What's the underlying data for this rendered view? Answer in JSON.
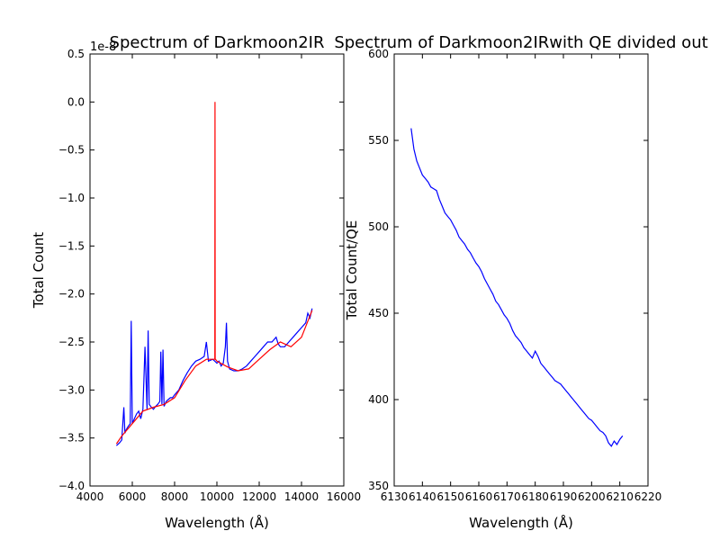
{
  "chart_data": [
    {
      "type": "line",
      "title": "Spectrum of Darkmoon2IR",
      "xlabel": "Wavelength (Å)",
      "ylabel": "Total Count",
      "offset_text": "1e-8",
      "xlim": [
        4000,
        16000
      ],
      "ylim": [
        -4.0,
        0.5
      ],
      "xticks": [
        "4000",
        "6000",
        "8000",
        "10000",
        "12000",
        "14000",
        "16000"
      ],
      "yticks": [
        "−4.0",
        "−3.5",
        "−3.0",
        "−2.5",
        "−2.0",
        "−1.5",
        "−1.0",
        "−0.5",
        "0.0",
        "0.5"
      ],
      "series": [
        {
          "color": "#0000ff",
          "x": [
            5250,
            5400,
            5500,
            5600,
            5650,
            5700,
            5800,
            5900,
            5950,
            6000,
            6100,
            6200,
            6300,
            6400,
            6500,
            6600,
            6700,
            6750,
            6800,
            6900,
            7000,
            7100,
            7200,
            7300,
            7350,
            7400,
            7450,
            7500,
            7600,
            7700,
            7800,
            7900,
            8000,
            8200,
            8400,
            8600,
            8800,
            9000,
            9200,
            9400,
            9500,
            9600,
            9800,
            9900,
            10000,
            10100,
            10200,
            10300,
            10400,
            10450,
            10500,
            10600,
            10800,
            11000,
            11200,
            11400,
            11600,
            11800,
            12000,
            12200,
            12400,
            12600,
            12800,
            12900,
            13000,
            13200,
            13400,
            13600,
            13800,
            14000,
            14200,
            14300,
            14400,
            14500
          ],
          "y": [
            -3.58,
            -3.55,
            -3.52,
            -3.18,
            -3.45,
            -3.42,
            -3.38,
            -3.35,
            -2.28,
            -3.35,
            -3.3,
            -3.25,
            -3.22,
            -3.3,
            -3.2,
            -2.55,
            -3.2,
            -2.38,
            -3.15,
            -3.18,
            -3.2,
            -3.17,
            -3.15,
            -3.12,
            -2.6,
            -3.15,
            -2.58,
            -3.17,
            -3.12,
            -3.1,
            -3.08,
            -3.08,
            -3.05,
            -3.0,
            -2.9,
            -2.82,
            -2.75,
            -2.7,
            -2.68,
            -2.65,
            -2.5,
            -2.7,
            -2.68,
            -2.7,
            -2.72,
            -2.7,
            -2.75,
            -2.72,
            -2.55,
            -2.3,
            -2.7,
            -2.78,
            -2.8,
            -2.8,
            -2.78,
            -2.75,
            -2.7,
            -2.65,
            -2.6,
            -2.55,
            -2.5,
            -2.5,
            -2.45,
            -2.52,
            -2.55,
            -2.55,
            -2.5,
            -2.45,
            -2.4,
            -2.35,
            -2.3,
            -2.2,
            -2.25,
            -2.15
          ]
        },
        {
          "color": "#ff0000",
          "x": [
            5250,
            5500,
            6000,
            6500,
            7000,
            7500,
            8000,
            8500,
            9000,
            9500,
            9900,
            9910,
            9920,
            9930,
            10000,
            10500,
            11000,
            11500,
            12000,
            12500,
            13000,
            13500,
            14000,
            14500
          ],
          "y": [
            -3.56,
            -3.48,
            -3.35,
            -3.22,
            -3.18,
            -3.15,
            -3.08,
            -2.9,
            -2.75,
            -2.68,
            -2.68,
            0.0,
            -2.68,
            -2.68,
            -2.7,
            -2.76,
            -2.8,
            -2.78,
            -2.68,
            -2.58,
            -2.5,
            -2.55,
            -2.45,
            -2.17
          ]
        }
      ]
    },
    {
      "type": "line",
      "title": "Spectrum of Darkmoon2IRwith QE divided out",
      "xlabel": "Wavelength (Å)",
      "ylabel": "Total Count/QE",
      "xlim": [
        6130,
        6220
      ],
      "ylim": [
        350,
        600
      ],
      "xticks": [
        "6130",
        "6140",
        "6150",
        "6160",
        "6170",
        "6180",
        "6190",
        "6200",
        "6210",
        "6220"
      ],
      "yticks": [
        "350",
        "400",
        "450",
        "500",
        "550",
        "600"
      ],
      "series": [
        {
          "color": "#0000ff",
          "x": [
            6136,
            6137,
            6138,
            6139,
            6140,
            6141,
            6142,
            6143,
            6144,
            6145,
            6146,
            6147,
            6148,
            6149,
            6150,
            6151,
            6152,
            6153,
            6154,
            6155,
            6156,
            6157,
            6158,
            6159,
            6160,
            6161,
            6162,
            6163,
            6164,
            6165,
            6166,
            6167,
            6168,
            6169,
            6170,
            6171,
            6172,
            6173,
            6174,
            6175,
            6176,
            6177,
            6178,
            6179,
            6180,
            6181,
            6182,
            6183,
            6184,
            6185,
            6186,
            6187,
            6188,
            6189,
            6190,
            6191,
            6192,
            6193,
            6194,
            6195,
            6196,
            6197,
            6198,
            6199,
            6200,
            6201,
            6202,
            6203,
            6204,
            6205,
            6206,
            6207,
            6208,
            6209,
            6210,
            6211
          ],
          "y": [
            557,
            545,
            538,
            534,
            530,
            528,
            526,
            523,
            522,
            521,
            516,
            512,
            508,
            506,
            504,
            501,
            498,
            494,
            492,
            490,
            487,
            485,
            482,
            479,
            477,
            474,
            470,
            467,
            464,
            461,
            457,
            455,
            452,
            449,
            447,
            444,
            440,
            437,
            435,
            433,
            430,
            428,
            426,
            424,
            428,
            425,
            421,
            419,
            417,
            415,
            413,
            411,
            410,
            409,
            407,
            405,
            403,
            401,
            399,
            397,
            395,
            393,
            391,
            389,
            388,
            386,
            384,
            382,
            381,
            379,
            375,
            373,
            376,
            374,
            377,
            379
          ]
        }
      ]
    }
  ]
}
